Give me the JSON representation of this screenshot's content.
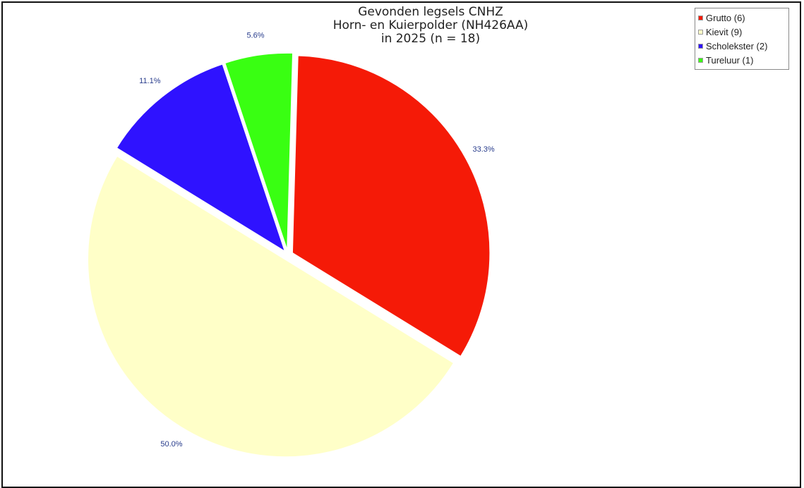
{
  "chart_data": {
    "type": "pie",
    "title": [
      "Gevonden legsels CNHZ",
      "Horn- en Kuierpolder (NH426AA)",
      "in 2025 (n = 18)"
    ],
    "legend_position": "top-right",
    "series": [
      {
        "name": "Grutto (6)",
        "value": 6,
        "label": "33.3%",
        "color": "#f51a07"
      },
      {
        "name": "Kievit (9)",
        "value": 9,
        "label": "50.0%",
        "color": "#ffffc8"
      },
      {
        "name": "Scholekster (2)",
        "value": 2,
        "label": "11.1%",
        "color": "#2f12ff"
      },
      {
        "name": "Tureluur (1)",
        "value": 1,
        "label": "5.6%",
        "color": "#39ff12"
      }
    ]
  }
}
